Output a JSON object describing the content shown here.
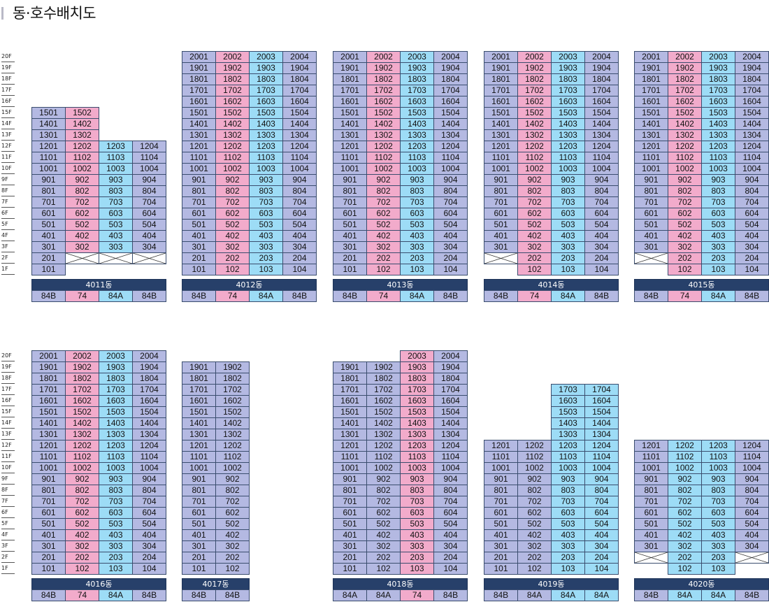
{
  "title": "동·호수배치도",
  "colors": {
    "blue": "#b4b9e2",
    "pink": "#f2abcb",
    "cyan": "#9ddcf6",
    "building_label_bg": "#27406a"
  },
  "floor_labels": [
    "20F",
    "19F",
    "18F",
    "17F",
    "16F",
    "15F",
    "14F",
    "13F",
    "12F",
    "11F",
    "10F",
    "9F",
    "8F",
    "7F",
    "6F",
    "5F",
    "4F",
    "3F",
    "2F",
    "1F"
  ],
  "buildings": [
    {
      "name": "4011동",
      "types": [
        "84B",
        "74",
        "84A",
        "84B"
      ],
      "colors": [
        "blue",
        "pink",
        "cyan",
        "blue"
      ],
      "units": [
        [
          "1501",
          "1502",
          "",
          ""
        ],
        [
          "1401",
          "1402",
          "",
          ""
        ],
        [
          "1301",
          "1302",
          "",
          ""
        ],
        [
          "1201",
          "1202",
          "1203",
          "1204"
        ],
        [
          "1101",
          "1102",
          "1103",
          "1104"
        ],
        [
          "1001",
          "1002",
          "1003",
          "1004"
        ],
        [
          "901",
          "902",
          "903",
          "904"
        ],
        [
          "801",
          "802",
          "803",
          "804"
        ],
        [
          "701",
          "702",
          "703",
          "704"
        ],
        [
          "601",
          "602",
          "603",
          "604"
        ],
        [
          "501",
          "502",
          "503",
          "504"
        ],
        [
          "401",
          "402",
          "403",
          "404"
        ],
        [
          "301",
          "302",
          "303",
          "304"
        ],
        [
          "201",
          "X",
          "X",
          "X"
        ],
        [
          "101",
          "",
          "",
          ""
        ]
      ]
    },
    {
      "name": "4012동",
      "types": [
        "84B",
        "74",
        "84A",
        "84B"
      ],
      "colors": [
        "blue",
        "pink",
        "cyan",
        "blue"
      ],
      "units": [
        [
          "2001",
          "2002",
          "2003",
          "2004"
        ],
        [
          "1901",
          "1902",
          "1903",
          "1904"
        ],
        [
          "1801",
          "1802",
          "1803",
          "1804"
        ],
        [
          "1701",
          "1702",
          "1703",
          "1704"
        ],
        [
          "1601",
          "1602",
          "1603",
          "1604"
        ],
        [
          "1501",
          "1502",
          "1503",
          "1504"
        ],
        [
          "1401",
          "1402",
          "1403",
          "1404"
        ],
        [
          "1301",
          "1302",
          "1303",
          "1304"
        ],
        [
          "1201",
          "1202",
          "1203",
          "1204"
        ],
        [
          "1101",
          "1102",
          "1103",
          "1104"
        ],
        [
          "1001",
          "1002",
          "1003",
          "1004"
        ],
        [
          "901",
          "902",
          "903",
          "904"
        ],
        [
          "801",
          "802",
          "803",
          "804"
        ],
        [
          "701",
          "702",
          "703",
          "704"
        ],
        [
          "601",
          "602",
          "603",
          "604"
        ],
        [
          "501",
          "502",
          "503",
          "504"
        ],
        [
          "401",
          "402",
          "403",
          "404"
        ],
        [
          "301",
          "302",
          "303",
          "304"
        ],
        [
          "201",
          "202",
          "203",
          "204"
        ],
        [
          "101",
          "102",
          "103",
          "104"
        ]
      ]
    },
    {
      "name": "4013동",
      "types": [
        "84B",
        "74",
        "84A",
        "84B"
      ],
      "colors": [
        "blue",
        "pink",
        "cyan",
        "blue"
      ],
      "units": [
        [
          "2001",
          "2002",
          "2003",
          "2004"
        ],
        [
          "1901",
          "1902",
          "1903",
          "1904"
        ],
        [
          "1801",
          "1802",
          "1803",
          "1804"
        ],
        [
          "1701",
          "1702",
          "1703",
          "1704"
        ],
        [
          "1601",
          "1602",
          "1603",
          "1604"
        ],
        [
          "1501",
          "1502",
          "1503",
          "1504"
        ],
        [
          "1401",
          "1402",
          "1403",
          "1404"
        ],
        [
          "1301",
          "1302",
          "1303",
          "1304"
        ],
        [
          "1201",
          "1202",
          "1203",
          "1204"
        ],
        [
          "1101",
          "1102",
          "1103",
          "1104"
        ],
        [
          "1001",
          "1002",
          "1003",
          "1004"
        ],
        [
          "901",
          "902",
          "903",
          "904"
        ],
        [
          "801",
          "802",
          "803",
          "804"
        ],
        [
          "701",
          "702",
          "703",
          "704"
        ],
        [
          "601",
          "602",
          "603",
          "604"
        ],
        [
          "501",
          "502",
          "503",
          "504"
        ],
        [
          "401",
          "402",
          "403",
          "404"
        ],
        [
          "301",
          "302",
          "303",
          "304"
        ],
        [
          "201",
          "202",
          "203",
          "204"
        ],
        [
          "101",
          "102",
          "103",
          "104"
        ]
      ]
    },
    {
      "name": "4014동",
      "types": [
        "84B",
        "74",
        "84A",
        "84B"
      ],
      "colors": [
        "blue",
        "pink",
        "cyan",
        "blue"
      ],
      "units": [
        [
          "2001",
          "2002",
          "2003",
          "2004"
        ],
        [
          "1901",
          "1902",
          "1903",
          "1904"
        ],
        [
          "1801",
          "1802",
          "1803",
          "1804"
        ],
        [
          "1701",
          "1702",
          "1703",
          "1704"
        ],
        [
          "1601",
          "1602",
          "1603",
          "1604"
        ],
        [
          "1501",
          "1502",
          "1503",
          "1504"
        ],
        [
          "1401",
          "1402",
          "1403",
          "1404"
        ],
        [
          "1301",
          "1302",
          "1303",
          "1304"
        ],
        [
          "1201",
          "1202",
          "1203",
          "1204"
        ],
        [
          "1101",
          "1102",
          "1103",
          "1104"
        ],
        [
          "1001",
          "1002",
          "1003",
          "1004"
        ],
        [
          "901",
          "902",
          "903",
          "904"
        ],
        [
          "801",
          "802",
          "803",
          "804"
        ],
        [
          "701",
          "702",
          "703",
          "704"
        ],
        [
          "601",
          "602",
          "603",
          "604"
        ],
        [
          "501",
          "502",
          "503",
          "504"
        ],
        [
          "401",
          "402",
          "403",
          "404"
        ],
        [
          "301",
          "302",
          "303",
          "304"
        ],
        [
          "X",
          "202",
          "203",
          "204"
        ],
        [
          "",
          "102",
          "103",
          "104"
        ]
      ]
    },
    {
      "name": "4015동",
      "types": [
        "84B",
        "74",
        "84A",
        "84B"
      ],
      "colors": [
        "blue",
        "pink",
        "cyan",
        "blue"
      ],
      "units": [
        [
          "2001",
          "2002",
          "2003",
          "2004"
        ],
        [
          "1901",
          "1902",
          "1903",
          "1904"
        ],
        [
          "1801",
          "1802",
          "1803",
          "1804"
        ],
        [
          "1701",
          "1702",
          "1703",
          "1704"
        ],
        [
          "1601",
          "1602",
          "1603",
          "1604"
        ],
        [
          "1501",
          "1502",
          "1503",
          "1504"
        ],
        [
          "1401",
          "1402",
          "1403",
          "1404"
        ],
        [
          "1301",
          "1302",
          "1303",
          "1304"
        ],
        [
          "1201",
          "1202",
          "1203",
          "1204"
        ],
        [
          "1101",
          "1102",
          "1103",
          "1104"
        ],
        [
          "1001",
          "1002",
          "1003",
          "1004"
        ],
        [
          "901",
          "902",
          "903",
          "904"
        ],
        [
          "801",
          "802",
          "803",
          "804"
        ],
        [
          "701",
          "702",
          "703",
          "704"
        ],
        [
          "601",
          "602",
          "603",
          "604"
        ],
        [
          "501",
          "502",
          "503",
          "504"
        ],
        [
          "401",
          "402",
          "403",
          "404"
        ],
        [
          "301",
          "302",
          "303",
          "304"
        ],
        [
          "X",
          "202",
          "203",
          "204"
        ],
        [
          "",
          "102",
          "103",
          "104"
        ]
      ]
    },
    {
      "name": "4016동",
      "types": [
        "84B",
        "74",
        "84A",
        "84B"
      ],
      "colors": [
        "blue",
        "pink",
        "cyan",
        "blue"
      ],
      "units": [
        [
          "2001",
          "2002",
          "2003",
          "2004"
        ],
        [
          "1901",
          "1902",
          "1903",
          "1904"
        ],
        [
          "1801",
          "1802",
          "1803",
          "1804"
        ],
        [
          "1701",
          "1702",
          "1703",
          "1704"
        ],
        [
          "1601",
          "1602",
          "1603",
          "1604"
        ],
        [
          "1501",
          "1502",
          "1503",
          "1504"
        ],
        [
          "1401",
          "1402",
          "1403",
          "1404"
        ],
        [
          "1301",
          "1302",
          "1303",
          "1304"
        ],
        [
          "1201",
          "1202",
          "1203",
          "1204"
        ],
        [
          "1101",
          "1102",
          "1103",
          "1104"
        ],
        [
          "1001",
          "1002",
          "1003",
          "1004"
        ],
        [
          "901",
          "902",
          "903",
          "904"
        ],
        [
          "801",
          "802",
          "803",
          "804"
        ],
        [
          "701",
          "702",
          "703",
          "704"
        ],
        [
          "601",
          "602",
          "603",
          "604"
        ],
        [
          "501",
          "502",
          "503",
          "504"
        ],
        [
          "401",
          "402",
          "403",
          "404"
        ],
        [
          "301",
          "302",
          "303",
          "304"
        ],
        [
          "201",
          "202",
          "203",
          "204"
        ],
        [
          "101",
          "102",
          "103",
          "104"
        ]
      ]
    },
    {
      "name": "4017동",
      "types": [
        "84B",
        "84B"
      ],
      "colors": [
        "blue",
        "blue"
      ],
      "units": [
        [
          "1901",
          "1902"
        ],
        [
          "1801",
          "1802"
        ],
        [
          "1701",
          "1702"
        ],
        [
          "1601",
          "1602"
        ],
        [
          "1501",
          "1502"
        ],
        [
          "1401",
          "1402"
        ],
        [
          "1301",
          "1302"
        ],
        [
          "1201",
          "1202"
        ],
        [
          "1101",
          "1102"
        ],
        [
          "1001",
          "1002"
        ],
        [
          "901",
          "902"
        ],
        [
          "801",
          "802"
        ],
        [
          "701",
          "702"
        ],
        [
          "601",
          "602"
        ],
        [
          "501",
          "502"
        ],
        [
          "401",
          "402"
        ],
        [
          "301",
          "302"
        ],
        [
          "201",
          "202"
        ],
        [
          "101",
          "102"
        ]
      ]
    },
    {
      "name": "4018동",
      "types": [
        "84A",
        "84A",
        "74",
        "84B"
      ],
      "colors": [
        "blue",
        "blue",
        "pink",
        "blue"
      ],
      "units": [
        [
          "",
          "",
          "2003",
          "2004"
        ],
        [
          "1901",
          "1902",
          "1903",
          "1904"
        ],
        [
          "1801",
          "1802",
          "1803",
          "1804"
        ],
        [
          "1701",
          "1702",
          "1703",
          "1704"
        ],
        [
          "1601",
          "1602",
          "1603",
          "1604"
        ],
        [
          "1501",
          "1502",
          "1503",
          "1504"
        ],
        [
          "1401",
          "1402",
          "1403",
          "1404"
        ],
        [
          "1301",
          "1302",
          "1303",
          "1304"
        ],
        [
          "1201",
          "1202",
          "1203",
          "1204"
        ],
        [
          "1101",
          "1102",
          "1103",
          "1104"
        ],
        [
          "1001",
          "1002",
          "1003",
          "1004"
        ],
        [
          "901",
          "902",
          "903",
          "904"
        ],
        [
          "801",
          "802",
          "803",
          "804"
        ],
        [
          "701",
          "702",
          "703",
          "704"
        ],
        [
          "601",
          "602",
          "603",
          "604"
        ],
        [
          "501",
          "502",
          "503",
          "504"
        ],
        [
          "401",
          "402",
          "403",
          "404"
        ],
        [
          "301",
          "302",
          "303",
          "304"
        ],
        [
          "201",
          "202",
          "203",
          "204"
        ],
        [
          "101",
          "102",
          "103",
          "104"
        ]
      ]
    },
    {
      "name": "4019동",
      "types": [
        "84B",
        "84A",
        "84A",
        "84A"
      ],
      "colors": [
        "blue",
        "blue",
        "cyan",
        "cyan"
      ],
      "units": [
        [
          "",
          "",
          "1703",
          "1704"
        ],
        [
          "",
          "",
          "1603",
          "1604"
        ],
        [
          "",
          "",
          "1503",
          "1504"
        ],
        [
          "",
          "",
          "1403",
          "1404"
        ],
        [
          "",
          "",
          "1303",
          "1304"
        ],
        [
          "1201",
          "1202",
          "1203",
          "1204"
        ],
        [
          "1101",
          "1102",
          "1103",
          "1104"
        ],
        [
          "1001",
          "1002",
          "1003",
          "1004"
        ],
        [
          "901",
          "902",
          "903",
          "904"
        ],
        [
          "801",
          "802",
          "803",
          "804"
        ],
        [
          "701",
          "702",
          "703",
          "704"
        ],
        [
          "601",
          "602",
          "603",
          "604"
        ],
        [
          "501",
          "502",
          "503",
          "504"
        ],
        [
          "401",
          "402",
          "403",
          "404"
        ],
        [
          "301",
          "302",
          "303",
          "304"
        ],
        [
          "201",
          "202",
          "203",
          "204"
        ],
        [
          "101",
          "102",
          "103",
          "104"
        ]
      ]
    },
    {
      "name": "4020동",
      "types": [
        "84B",
        "84A",
        "84A",
        "84B"
      ],
      "colors": [
        "blue",
        "cyan",
        "cyan",
        "blue"
      ],
      "units": [
        [
          "1201",
          "1202",
          "1203",
          "1204"
        ],
        [
          "1101",
          "1102",
          "1103",
          "1104"
        ],
        [
          "1001",
          "1002",
          "1003",
          "1004"
        ],
        [
          "901",
          "902",
          "903",
          "904"
        ],
        [
          "801",
          "802",
          "803",
          "804"
        ],
        [
          "701",
          "702",
          "703",
          "704"
        ],
        [
          "601",
          "602",
          "603",
          "604"
        ],
        [
          "501",
          "502",
          "503",
          "504"
        ],
        [
          "401",
          "402",
          "403",
          "404"
        ],
        [
          "301",
          "302",
          "303",
          "304"
        ],
        [
          "X",
          "202",
          "203",
          "X"
        ],
        [
          "",
          "102",
          "103",
          ""
        ]
      ]
    }
  ]
}
